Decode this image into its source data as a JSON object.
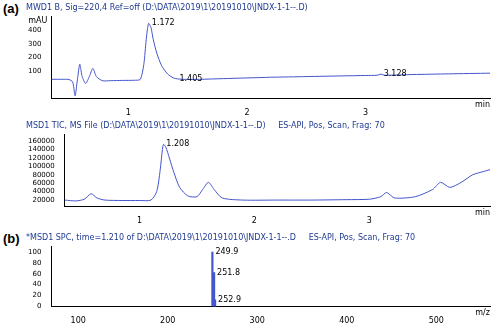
{
  "chart_data": [
    {
      "type": "line",
      "panel_label": "(a)",
      "title": "MWD1 B, Sig=220,4 Ref=off (D:\\DATA\\2019\\1\\20191010\\JNDX-1-1--.D)",
      "x_label": "min",
      "y_label": "mAU",
      "x": [
        0.35,
        0.45,
        0.5,
        0.53,
        0.55,
        0.57,
        0.59,
        0.61,
        0.64,
        0.67,
        0.7,
        0.73,
        0.78,
        0.85,
        0.95,
        1.05,
        1.1,
        1.13,
        1.15,
        1.17,
        1.19,
        1.21,
        1.24,
        1.28,
        1.33,
        1.38,
        1.45,
        1.6,
        1.8,
        2.0,
        2.2,
        2.5,
        2.8,
        3.0,
        3.1,
        3.13,
        3.16,
        3.4,
        3.7,
        4.05
      ],
      "values": [
        40,
        40,
        38,
        20,
        -80,
        40,
        150,
        60,
        10,
        60,
        120,
        60,
        30,
        30,
        32,
        33,
        40,
        150,
        330,
        450,
        420,
        330,
        230,
        140,
        80,
        50,
        40,
        40,
        45,
        50,
        55,
        60,
        65,
        68,
        70,
        78,
        70,
        75,
        80,
        85
      ],
      "color": "#4455cc",
      "xlim": [
        0.35,
        4.05
      ],
      "xticks": [
        1,
        2,
        3
      ],
      "ylim": [
        -100,
        500
      ],
      "yticks": [
        100,
        200,
        300,
        400
      ],
      "grid": false,
      "annotations": [
        {
          "x": 1.172,
          "y": 450,
          "text": "1.172"
        },
        {
          "x": 1.405,
          "y": 42,
          "text": "1.405"
        },
        {
          "x": 3.128,
          "y": 78,
          "text": "3.128"
        }
      ]
    },
    {
      "type": "line",
      "title": "MSD1 TIC, MS File (D:\\DATA\\2019\\1\\20191010\\JNDX-1-1--.D)     ES-API, Pos, Scan, Frag: 70",
      "x_label": "min",
      "x": [
        0.35,
        0.45,
        0.52,
        0.58,
        0.63,
        0.7,
        0.85,
        1.0,
        1.1,
        1.15,
        1.18,
        1.2,
        1.21,
        1.23,
        1.26,
        1.3,
        1.35,
        1.42,
        1.5,
        1.55,
        1.6,
        1.65,
        1.72,
        1.9,
        2.2,
        2.5,
        2.8,
        3.0,
        3.1,
        3.15,
        3.22,
        3.4,
        3.55,
        3.62,
        3.7,
        3.8,
        3.9,
        4.0,
        4.05
      ],
      "values": [
        20000,
        18000,
        22000,
        35000,
        25000,
        20000,
        19000,
        19000,
        20000,
        40000,
        90000,
        140000,
        152000,
        145000,
        120000,
        85000,
        50000,
        30000,
        28000,
        45000,
        62000,
        45000,
        25000,
        20000,
        20000,
        20000,
        21000,
        22000,
        28000,
        38000,
        25000,
        28000,
        45000,
        62000,
        50000,
        62000,
        80000,
        88000,
        92000
      ],
      "color": "#4455cc",
      "xlim": [
        0.35,
        4.05
      ],
      "xticks": [
        1,
        2,
        3
      ],
      "ylim": [
        5000,
        175000
      ],
      "yticks": [
        20000,
        40000,
        60000,
        80000,
        100000,
        120000,
        140000,
        160000
      ],
      "grid": false,
      "annotations": [
        {
          "x": 1.208,
          "y": 152000,
          "text": "1.208"
        }
      ]
    },
    {
      "type": "bar",
      "panel_label": "(b)",
      "title": "*MSD1 SPC, time=1.210 of D:\\DATA\\2019\\1\\20191010\\JNDX-1-1--.D     ES-API, Pos, Scan, Frag: 70",
      "x_label": "m/z",
      "x": [
        249.9,
        251.8,
        252.9
      ],
      "values": [
        100,
        62,
        12
      ],
      "color": "#4455cc",
      "xlim": [
        70,
        560
      ],
      "xticks": [
        100,
        200,
        300,
        400,
        500
      ],
      "ylim": [
        0,
        110
      ],
      "yticks": [
        0,
        20,
        40,
        60,
        80,
        100
      ],
      "grid": false,
      "annotations": [
        {
          "x": 249.9,
          "y": 100,
          "text": "249.9"
        },
        {
          "x": 251.8,
          "y": 62,
          "text": "251.8"
        },
        {
          "x": 252.9,
          "y": 12,
          "text": "252.9"
        }
      ]
    }
  ]
}
